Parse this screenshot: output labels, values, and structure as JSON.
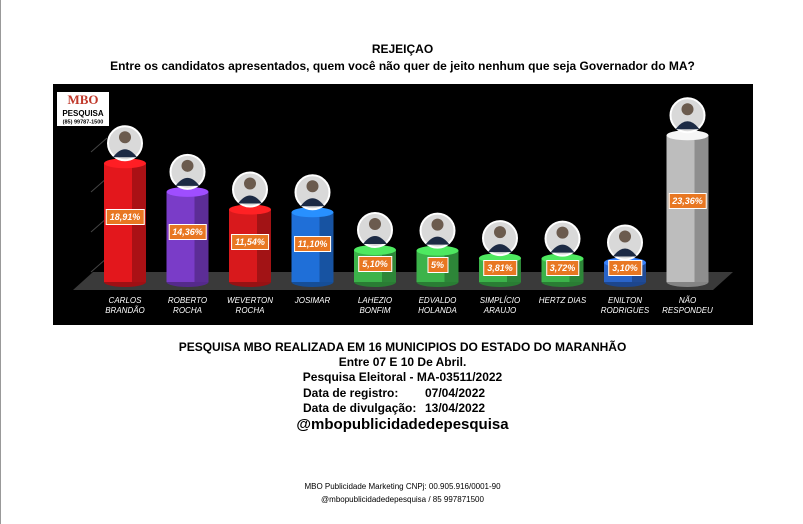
{
  "chart_data": {
    "type": "bar3d",
    "title": "REJEIÇAO",
    "subtitle": "Entre os candidatos apresentados, quem você não quer de jeito nenhum que seja Governador do MA?",
    "categories": [
      "CARLOS BRANDÃO",
      "ROBERTO ROCHA",
      "WEVERTON ROCHA",
      "JOSIMAR",
      "LAHEZIO BONFIM",
      "EDVALDO HOLANDA",
      "SIMPLÍCIO ARAUJO",
      "HERTZ DIAS",
      "ENILTON RODRIGUES",
      "NÃO RESPONDEU"
    ],
    "values": [
      18.91,
      14.36,
      11.54,
      11.1,
      5.1,
      5,
      3.81,
      3.72,
      3.1,
      23.36
    ],
    "value_labels": [
      "18,91%",
      "14,36%",
      "11,54%",
      "11,10%",
      "5,10%",
      "5%",
      "3,81%",
      "3,72%",
      "3,10%",
      "23,36%"
    ],
    "colors": [
      "#e3171c",
      "#7a3cc8",
      "#d8191c",
      "#1f6fd8",
      "#3cb34a",
      "#3cb34a",
      "#3cb34a",
      "#3cb34a",
      "#2a64c9",
      "#bdbdbd"
    ],
    "ylim": [
      0,
      25
    ]
  },
  "logo": {
    "brand": "MBO",
    "name": "PESQUISA",
    "phone": "(85) 99787-1500"
  },
  "survey": {
    "line1": "PESQUISA MBO REALIZADA EM 16 MUNICIPIOS DO ESTADO DO MARANHÃO",
    "line2": "Entre 07 E 10 De Abril.",
    "line3": "Pesquisa Eleitoral - MA-03511/2022",
    "registro_label": "Data de registro:",
    "registro_date": "07/04/2022",
    "divulgacao_label": "Data de divulgação:",
    "divulgacao_date": "13/04/2022",
    "handle": "@mbopublicidadedepesquisa"
  },
  "footer": {
    "line1": "MBO Publicidade Marketing CNPj: 00.905.916/0001-90",
    "line2": "@mbopublicidadedepesquisa / 85 997871500"
  }
}
